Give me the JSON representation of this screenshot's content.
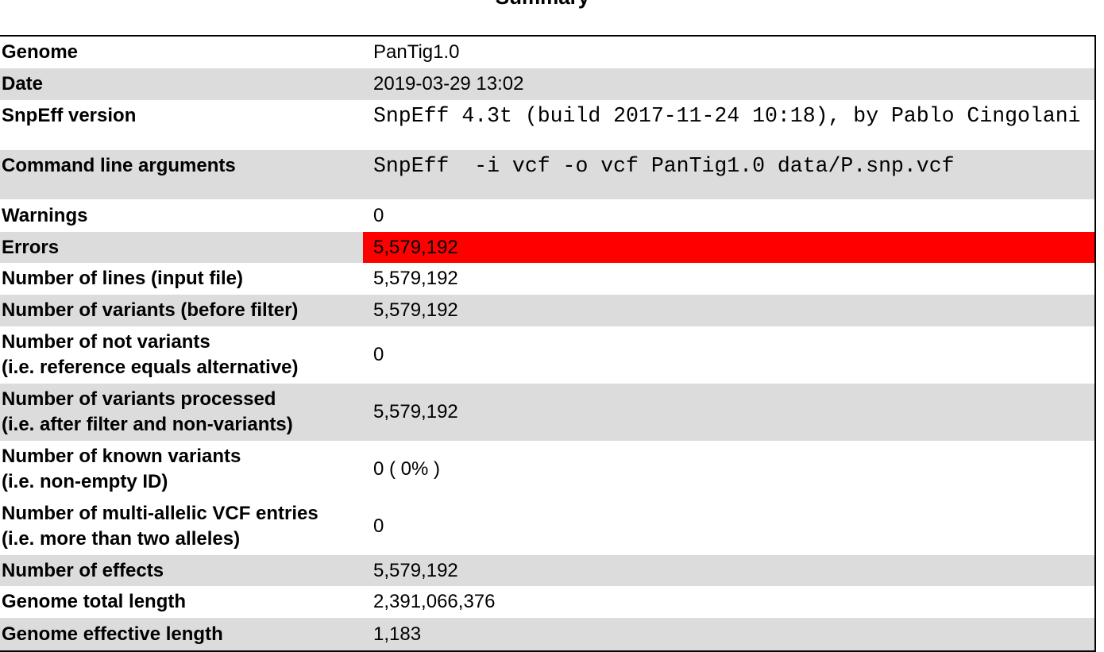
{
  "title": "Summary",
  "table": {
    "rows": [
      {
        "label": "Genome",
        "value": "PanTig1.0"
      },
      {
        "label": "Date",
        "value": "2019-03-29 13:02"
      },
      {
        "label": "SnpEff version",
        "value": "SnpEff 4.3t (build 2017-11-24 10:18), by Pablo Cingolani"
      },
      {
        "label": "Command line arguments",
        "value": "SnpEff  -i vcf -o vcf PanTig1.0 data/P.snp.vcf"
      },
      {
        "label": "Warnings",
        "value": "0"
      },
      {
        "label": "Errors",
        "value": "5,579,192"
      },
      {
        "label": "Number of lines (input file)",
        "value": "5,579,192"
      },
      {
        "label": "Number of variants (before filter)",
        "value": "5,579,192"
      },
      {
        "label": [
          "Number of not variants",
          "(i.e. reference equals alternative)"
        ],
        "value": "0"
      },
      {
        "label": [
          "Number of variants processed",
          "(i.e. after filter and non-variants)"
        ],
        "value": "5,579,192"
      },
      {
        "label": [
          "Number of known variants",
          "(i.e. non-empty ID)"
        ],
        "value": "0 ( 0% )"
      },
      {
        "label": [
          "Number of multi-allelic VCF entries",
          "(i.e. more than two alleles)"
        ],
        "value": "0"
      },
      {
        "label": "Number of effects",
        "value": "5,579,192"
      },
      {
        "label": "Genome total length",
        "value": "2,391,066,376"
      },
      {
        "label": "Genome effective length",
        "value": "1,183"
      }
    ]
  }
}
